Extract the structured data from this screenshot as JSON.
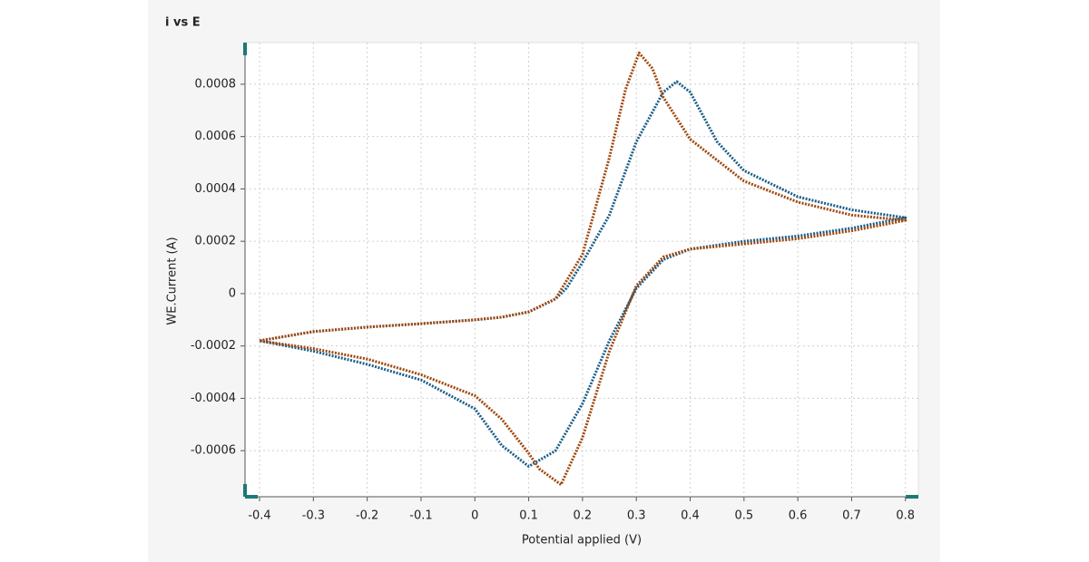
{
  "chart_data": {
    "type": "line",
    "title": "i vs E",
    "x_label": "Potential applied (V)",
    "y_label": "WE.Current (A)",
    "xlim": [
      -0.427,
      0.824
    ],
    "ylim": [
      -0.000776,
      0.000959
    ],
    "xticks": [
      -0.4,
      -0.3,
      -0.2,
      -0.1,
      0,
      0.1,
      0.2,
      0.3,
      0.4,
      0.5,
      0.6,
      0.7,
      0.8
    ],
    "yticks": [
      -0.0006,
      -0.0004,
      -0.0002,
      0,
      0.0002,
      0.0004,
      0.0006,
      0.0008
    ],
    "grid": true,
    "series": [
      {
        "color": "#1b5e88",
        "x": [
          -0.4,
          -0.3,
          -0.2,
          -0.1,
          0,
          0.05,
          0.1,
          0.15,
          0.17,
          0.2,
          0.25,
          0.3,
          0.35,
          0.375,
          0.4,
          0.45,
          0.5,
          0.6,
          0.7,
          0.8,
          0.7,
          0.6,
          0.5,
          0.4,
          0.35,
          0.3,
          0.25,
          0.2,
          0.15,
          0.1,
          0.05,
          0,
          -0.1,
          -0.2,
          -0.3,
          -0.4
        ],
        "values": [
          -0.00018,
          -0.000145,
          -0.000128,
          -0.000115,
          -0.0001,
          -9e-05,
          -7e-05,
          -2e-05,
          2e-05,
          0.00012,
          0.0003,
          0.00058,
          0.00077,
          0.00081,
          0.00077,
          0.00058,
          0.00047,
          0.00037,
          0.00032,
          0.00029,
          0.00025,
          0.00022,
          0.0002,
          0.00017,
          0.00013,
          2e-05,
          -0.00018,
          -0.00042,
          -0.0006,
          -0.00066,
          -0.00058,
          -0.00044,
          -0.00033,
          -0.00027,
          -0.00022,
          -0.00018
        ]
      },
      {
        "color": "#a0470d",
        "x": [
          -0.4,
          -0.3,
          -0.2,
          -0.1,
          0,
          0.05,
          0.1,
          0.15,
          0.2,
          0.25,
          0.28,
          0.305,
          0.33,
          0.35,
          0.4,
          0.5,
          0.6,
          0.7,
          0.8,
          0.7,
          0.6,
          0.5,
          0.4,
          0.35,
          0.3,
          0.25,
          0.2,
          0.16,
          0.12,
          0.1,
          0.05,
          0,
          -0.1,
          -0.2,
          -0.3,
          -0.4
        ],
        "values": [
          -0.00018,
          -0.000145,
          -0.000128,
          -0.000115,
          -0.0001,
          -9e-05,
          -7e-05,
          -2e-05,
          0.00015,
          0.00052,
          0.00078,
          0.00092,
          0.00086,
          0.00075,
          0.00059,
          0.00043,
          0.00035,
          0.0003,
          0.00028,
          0.00024,
          0.00021,
          0.00019,
          0.00017,
          0.00014,
          3e-05,
          -0.00022,
          -0.00055,
          -0.00073,
          -0.00067,
          -0.00061,
          -0.00048,
          -0.00039,
          -0.00031,
          -0.00025,
          -0.00021,
          -0.00018
        ]
      }
    ]
  }
}
